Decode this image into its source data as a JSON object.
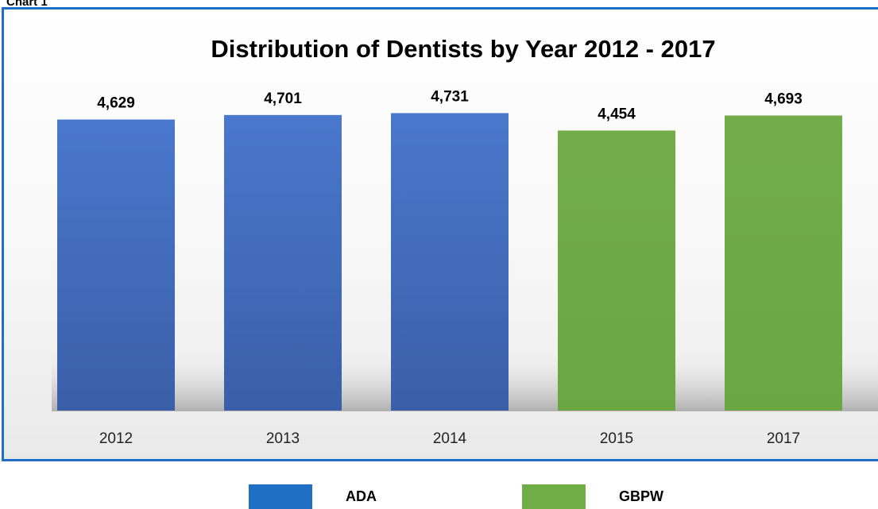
{
  "chart_label": "Chart 1",
  "chart_data": {
    "type": "bar",
    "title": "Distribution of Dentists by Year 2012 - 2017",
    "categories": [
      "2012",
      "2013",
      "2014",
      "2015",
      "2017"
    ],
    "values": [
      4629,
      4701,
      4731,
      4454,
      4693
    ],
    "value_labels": [
      "4,629",
      "4,701",
      "4,731",
      "4,454",
      "4,693"
    ],
    "series_membership": [
      "ADA",
      "ADA",
      "ADA",
      "GBPW",
      "GBPW"
    ],
    "series": [
      {
        "name": "ADA",
        "color": "#4472c4",
        "legend_color": "#1f6fc5"
      },
      {
        "name": "GBPW",
        "color": "#70ad47",
        "legend_color": "#70ad47"
      }
    ],
    "xlabel": "",
    "ylabel": "",
    "ylim": [
      0,
      4800
    ],
    "grid": false,
    "legend_position": "bottom"
  }
}
